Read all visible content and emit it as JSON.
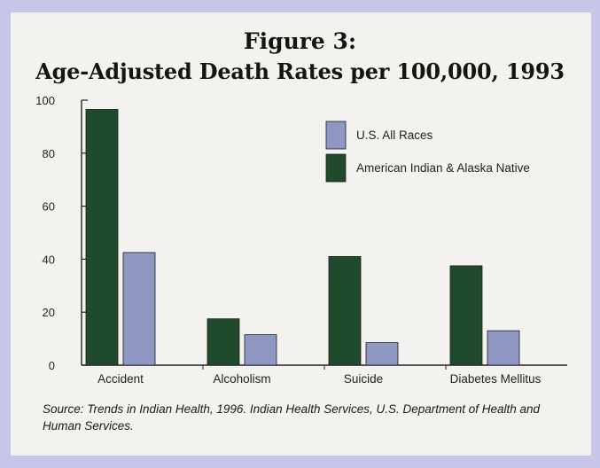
{
  "chart_data": {
    "type": "bar",
    "figure_label": "Figure 3:",
    "title": "Age-Adjusted Death Rates per 100,000, 1993",
    "categories": [
      "Accident",
      "Alcoholism",
      "Suicide",
      "Diabetes Mellitus"
    ],
    "series": [
      {
        "name": "American Indian & Alaska Native",
        "color": "#1f4a2c",
        "values": [
          96.5,
          17.5,
          41,
          37.5
        ]
      },
      {
        "name": "U.S. All Races",
        "color": "#8f98c2",
        "values": [
          42.5,
          11.5,
          8.5,
          13
        ]
      }
    ],
    "legend_order": [
      "U.S. All Races",
      "American Indian & Alaska Native"
    ],
    "legend_position": "top-right",
    "ylim": [
      0,
      100
    ],
    "yticks": [
      0,
      20,
      40,
      60,
      80,
      100
    ],
    "xlabel": "",
    "ylabel": "",
    "grid": false
  },
  "source": "Source: Trends in Indian Health, 1996. Indian Health Services, U.S. Department of Health and Human Services."
}
